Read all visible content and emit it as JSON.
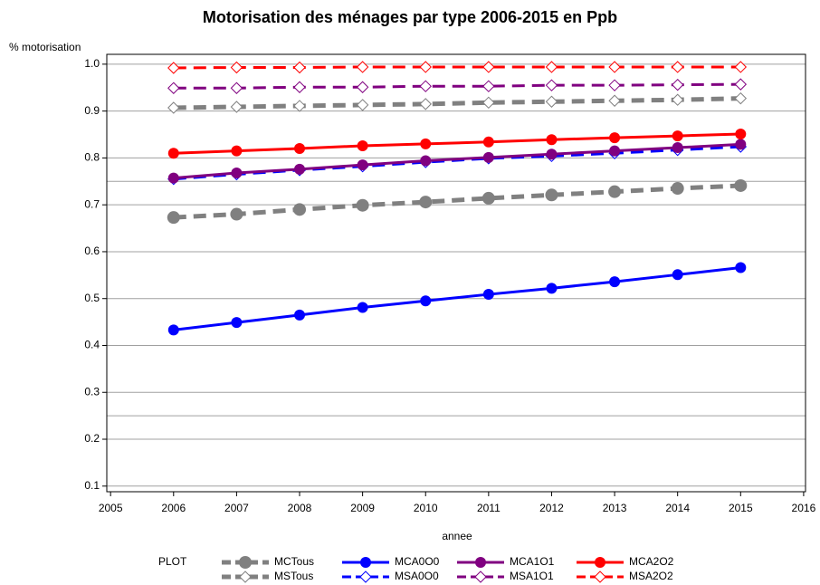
{
  "chart_data": {
    "type": "line",
    "title": "Motorisation des ménages par type 2006-2015 en Ppb",
    "y_label": "% motorisation",
    "x_label": "annee",
    "legend_title": "PLOT",
    "x": [
      2006,
      2007,
      2008,
      2009,
      2010,
      2011,
      2012,
      2013,
      2014,
      2015
    ],
    "xlim": [
      2004.94,
      2016.03
    ],
    "xticks": [
      2005,
      2006,
      2007,
      2008,
      2009,
      2010,
      2011,
      2012,
      2013,
      2014,
      2015,
      2016
    ],
    "ylim": [
      0.088,
      1.021
    ],
    "yticks": [
      0.1,
      0.2,
      0.3,
      0.4,
      0.5,
      0.6,
      0.7,
      0.8,
      0.9,
      {
        "value": 1,
        "label": "1.0"
      }
    ],
    "reference_lines": [
      0.25,
      0.75
    ],
    "grid": true,
    "legend": "bottom",
    "series": [
      {
        "name": "MCTous",
        "color": "#808080",
        "dashed": true,
        "marker": "circle",
        "values": [
          0.673,
          0.68,
          0.69,
          0.699,
          0.706,
          0.714,
          0.721,
          0.728,
          0.735,
          0.741
        ]
      },
      {
        "name": "MSTous",
        "color": "#808080",
        "dashed": true,
        "marker": "diamond",
        "values": [
          0.907,
          0.909,
          0.911,
          0.913,
          0.915,
          0.918,
          0.92,
          0.922,
          0.924,
          0.927
        ]
      },
      {
        "name": "MCA0O0",
        "color": "#0000ff",
        "dashed": false,
        "marker": "circle",
        "values": [
          0.433,
          0.449,
          0.465,
          0.481,
          0.495,
          0.509,
          0.522,
          0.536,
          0.551,
          0.566
        ]
      },
      {
        "name": "MSA0O0",
        "color": "#0000ff",
        "dashed": true,
        "marker": "diamond",
        "values": [
          0.755,
          0.765,
          0.774,
          0.782,
          0.791,
          0.799,
          0.804,
          0.81,
          0.817,
          0.824
        ]
      },
      {
        "name": "MCA1O1",
        "color": "#800080",
        "dashed": false,
        "marker": "circle",
        "values": [
          0.757,
          0.768,
          0.776,
          0.785,
          0.794,
          0.801,
          0.808,
          0.815,
          0.822,
          0.829
        ]
      },
      {
        "name": "MSA1O1",
        "color": "#800080",
        "dashed": true,
        "marker": "diamond",
        "values": [
          0.949,
          0.949,
          0.951,
          0.951,
          0.953,
          0.953,
          0.955,
          0.955,
          0.956,
          0.957
        ]
      },
      {
        "name": "MCA2O2",
        "color": "#ff0000",
        "dashed": false,
        "marker": "circle",
        "values": [
          0.81,
          0.815,
          0.82,
          0.826,
          0.83,
          0.834,
          0.839,
          0.843,
          0.847,
          0.851
        ]
      },
      {
        "name": "MSA2O2",
        "color": "#ff0000",
        "dashed": true,
        "marker": "diamond",
        "values": [
          0.992,
          0.993,
          0.993,
          0.994,
          0.994,
          0.994,
          0.994,
          0.994,
          0.994,
          0.994
        ]
      }
    ]
  }
}
